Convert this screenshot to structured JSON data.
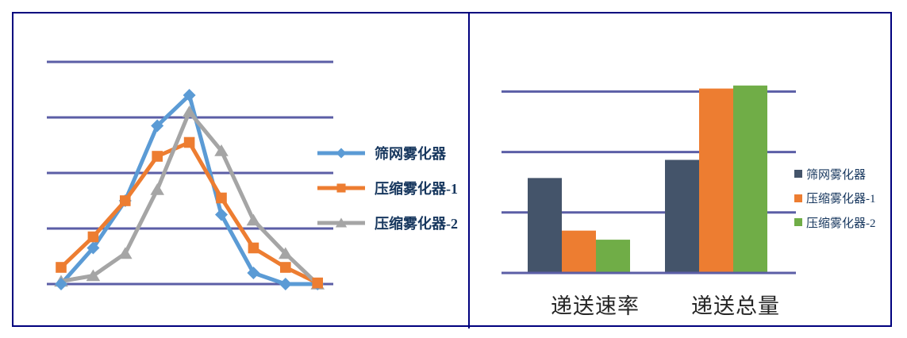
{
  "panel": {
    "border_color": "#00007E",
    "background": "#ffffff"
  },
  "chart_data": [
    {
      "type": "line",
      "title": "",
      "xlabel": "",
      "ylabel": "",
      "x": [
        1,
        2,
        3,
        4,
        5,
        6,
        7,
        8,
        9
      ],
      "series": [
        {
          "name": "筛网雾化器",
          "color": "#5B9BD5",
          "marker": "diamond",
          "values": [
            0,
            0.65,
            1.5,
            2.85,
            3.4,
            1.25,
            0.2,
            0,
            0
          ]
        },
        {
          "name": "压缩雾化器-1",
          "color": "#ED7D31",
          "marker": "square",
          "values": [
            0.3,
            0.85,
            1.5,
            2.3,
            2.55,
            1.55,
            0.65,
            0.3,
            0.02
          ]
        },
        {
          "name": "压缩雾化器-2",
          "color": "#A5A5A5",
          "marker": "triangle",
          "values": [
            0.05,
            0.15,
            0.55,
            1.7,
            3.1,
            2.4,
            1.15,
            0.55,
            0
          ]
        }
      ],
      "ylim": [
        0,
        4
      ],
      "gridline_values": [
        0,
        1,
        2,
        3,
        4
      ],
      "grid_color": "#5B5EA6",
      "grid_on": true,
      "x_tick_labels_visible": false,
      "y_tick_labels_visible": false,
      "legend_position": "right",
      "legend_text_color": "#17375E"
    },
    {
      "type": "bar",
      "title": "",
      "xlabel": "",
      "ylabel": "",
      "categories": [
        "递送速率",
        "递送总量"
      ],
      "series": [
        {
          "name": "筛网雾化器",
          "color": "#44546A",
          "values": [
            1.57,
            1.87
          ]
        },
        {
          "name": "压缩雾化器-1",
          "color": "#ED7D31",
          "values": [
            0.7,
            3.05
          ]
        },
        {
          "name": "压缩雾化器-2",
          "color": "#70AD47",
          "values": [
            0.55,
            3.1
          ]
        }
      ],
      "ylim": [
        0,
        3.3
      ],
      "gridline_values": [
        0,
        1,
        2,
        3
      ],
      "grid_color": "#5B5EA6",
      "grid_on": true,
      "y_tick_labels_visible": false,
      "category_label_color": "#262626",
      "legend_position": "right",
      "legend_text_color": "#17375E"
    }
  ]
}
